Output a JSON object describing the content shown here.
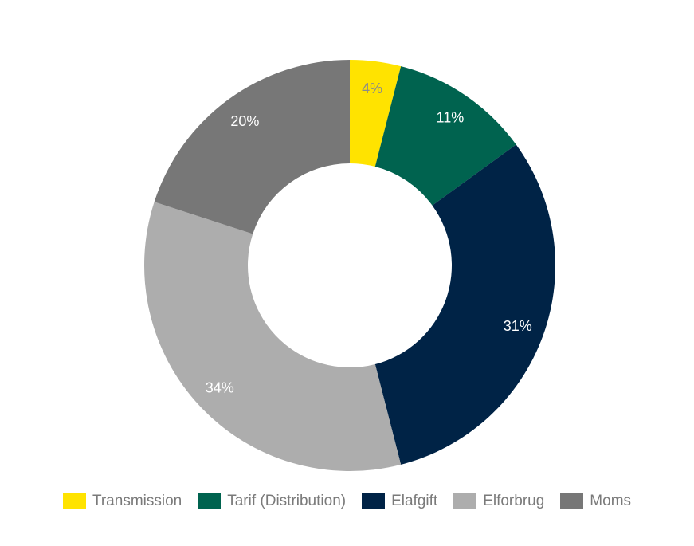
{
  "chart_data": {
    "type": "pie",
    "variant": "donut",
    "title": "",
    "categories": [
      "Transmission",
      "Tarif (Distribution)",
      "Elafgift",
      "Elforbrug",
      "Moms"
    ],
    "values": [
      4,
      11,
      31,
      34,
      20
    ],
    "value_labels": [
      "4%",
      "11%",
      "31%",
      "34%",
      "20%"
    ],
    "colors": [
      "#FFE300",
      "#00634F",
      "#002346",
      "#ADADAD",
      "#777777"
    ],
    "label_colors": [
      "#8a8a8a",
      "#ffffff",
      "#ffffff",
      "#ffffff",
      "#ffffff"
    ],
    "legend": {
      "placement": "bottom"
    }
  }
}
